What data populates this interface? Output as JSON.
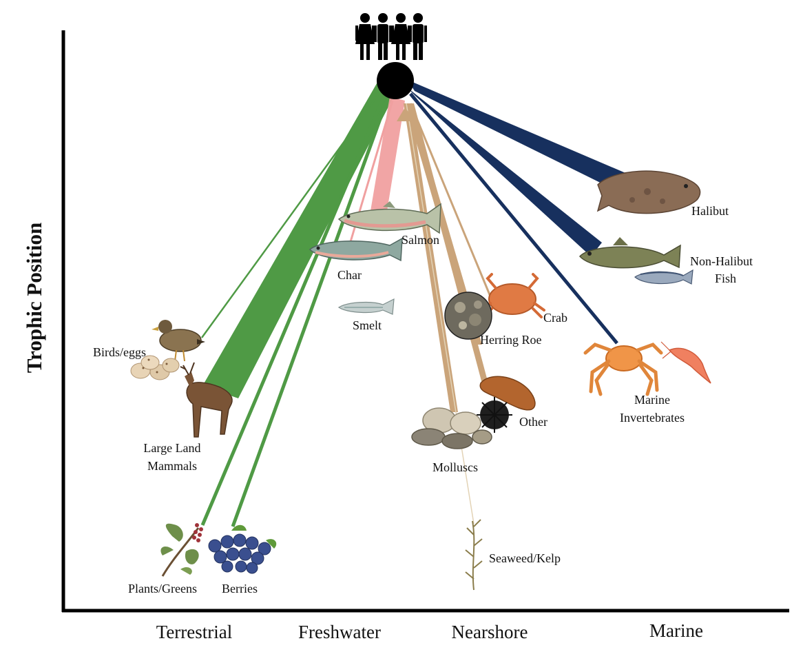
{
  "axes": {
    "y_label": "Trophic Position",
    "x_categories": [
      "Terrestrial",
      "Freshwater",
      "Nearshore",
      "Marine"
    ]
  },
  "colors": {
    "terrestrial": "#4f9a45",
    "freshwater": "#f0a0a0",
    "nearshore": "#caa47a",
    "marine": "#17305e",
    "consumer_node": "#000000"
  },
  "top_consumer": {
    "icon": "four-people-icon"
  },
  "nodes": [
    {
      "key": "halibut",
      "label_lines": [
        "Halibut"
      ],
      "group": "marine",
      "icon": "flatfish-icon",
      "flow": "high"
    },
    {
      "key": "non_halibut_fish",
      "label_lines": [
        "Non-Halibut",
        "Fish"
      ],
      "group": "marine",
      "icon": "cod-icon",
      "flow": "high"
    },
    {
      "key": "marine_invertebrates",
      "label_lines": [
        "Marine",
        "Invertebrates"
      ],
      "group": "marine",
      "icon": "king-crab-icon",
      "flow": "low"
    },
    {
      "key": "salmon",
      "label_lines": [
        "Salmon"
      ],
      "group": "freshwater",
      "icon": "salmon-icon",
      "flow": "medium"
    },
    {
      "key": "char",
      "label_lines": [
        "Char"
      ],
      "group": "freshwater",
      "icon": "char-icon",
      "flow": "low"
    },
    {
      "key": "smelt",
      "label_lines": [
        "Smelt"
      ],
      "group": "freshwater",
      "icon": "smelt-icon",
      "flow": "none"
    },
    {
      "key": "crab",
      "label_lines": [
        "Crab"
      ],
      "group": "nearshore",
      "icon": "crab-icon",
      "flow": "low"
    },
    {
      "key": "herring_roe",
      "label_lines": [
        "Herring Roe"
      ],
      "group": "nearshore",
      "icon": "herring-roe-icon",
      "flow": "low"
    },
    {
      "key": "other",
      "label_lines": [
        "Other"
      ],
      "group": "nearshore",
      "icon": "sea-urchin-icon",
      "flow": "low"
    },
    {
      "key": "molluscs",
      "label_lines": [
        "Molluscs"
      ],
      "group": "nearshore",
      "icon": "clam-icon",
      "flow": "medium"
    },
    {
      "key": "seaweed",
      "label_lines": [
        "Seaweed/Kelp"
      ],
      "group": "nearshore",
      "icon": "kelp-icon",
      "flow": "very-low"
    },
    {
      "key": "birds_eggs",
      "label_lines": [
        "Birds/eggs"
      ],
      "group": "terrestrial",
      "icon": "duck-icon",
      "flow": "low"
    },
    {
      "key": "large_land_mammals",
      "label_lines": [
        "Large Land",
        "Mammals"
      ],
      "group": "terrestrial",
      "icon": "deer-icon",
      "flow": "high"
    },
    {
      "key": "plants_greens",
      "label_lines": [
        "Plants/Greens"
      ],
      "group": "terrestrial",
      "icon": "plant-icon",
      "flow": "low"
    },
    {
      "key": "berries",
      "label_lines": [
        "Berries"
      ],
      "group": "terrestrial",
      "icon": "blueberries-icon",
      "flow": "low"
    }
  ]
}
